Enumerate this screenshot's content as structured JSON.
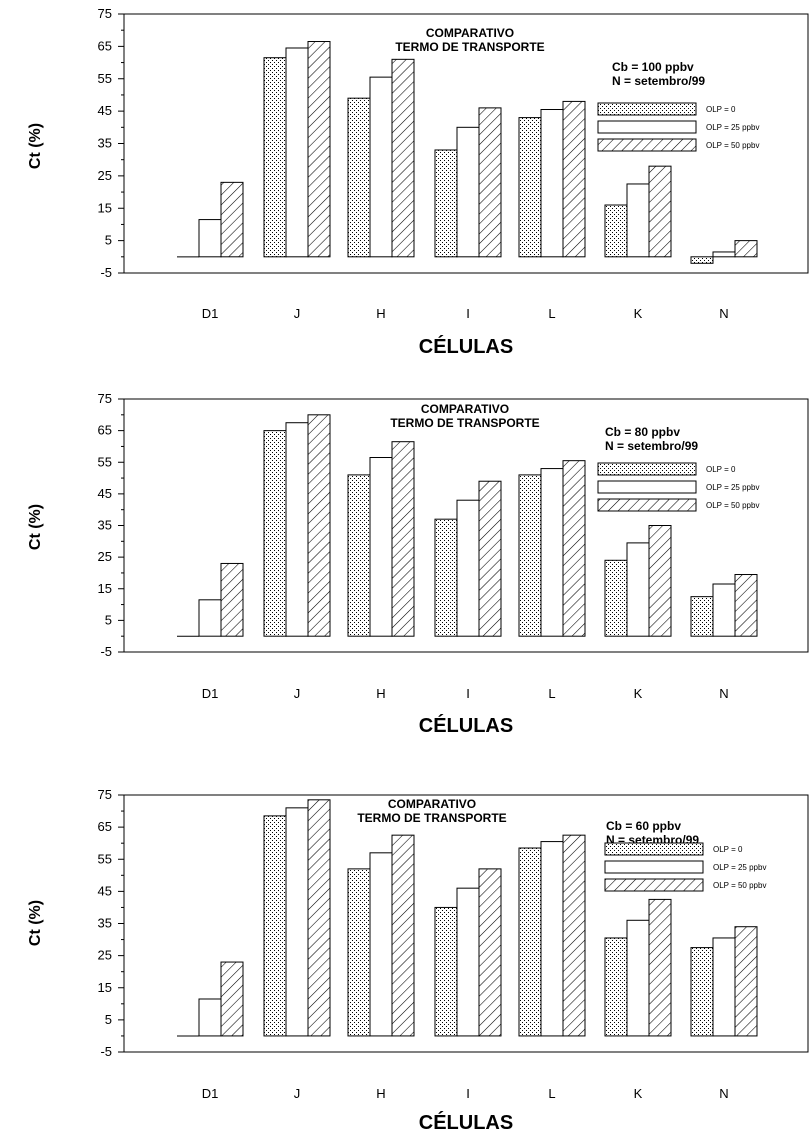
{
  "chart_data": [
    {
      "type": "bar",
      "title": [
        "COMPARATIVO",
        "TERMO DE TRANSPORTE"
      ],
      "annotation": [
        "Cb = 100 ppbv",
        "N = setembro/99"
      ],
      "xlabel": "CÉLULAS",
      "ylabel": "Ct (%)",
      "ylim": [
        -5,
        75
      ],
      "yticks": [
        75,
        65,
        55,
        45,
        35,
        25,
        15,
        5,
        -5
      ],
      "categories": [
        "D1",
        "J",
        "H",
        "I",
        "L",
        "K",
        "N"
      ],
      "series": [
        {
          "name": "OLP = 0",
          "pattern": "dots",
          "values": [
            0,
            61.5,
            49,
            33,
            43,
            16,
            -2
          ]
        },
        {
          "name": "OLP = 25 ppbv",
          "pattern": "plain",
          "values": [
            11.5,
            64.5,
            55.5,
            40,
            45.5,
            22.5,
            1.5
          ]
        },
        {
          "name": "OLP = 50 ppbv",
          "pattern": "hatch",
          "values": [
            23,
            66.5,
            61,
            46,
            48,
            28,
            5
          ]
        }
      ],
      "legend_position": "top-right",
      "grid": false
    },
    {
      "type": "bar",
      "title": [
        "COMPARATIVO",
        "TERMO DE TRANSPORTE"
      ],
      "annotation": [
        "Cb = 80 ppbv",
        "N = setembro/99"
      ],
      "xlabel": "CÉLULAS",
      "ylabel": "Ct (%)",
      "ylim": [
        -5,
        75
      ],
      "yticks": [
        75,
        65,
        55,
        45,
        35,
        25,
        15,
        5,
        -5
      ],
      "categories": [
        "D1",
        "J",
        "H",
        "I",
        "L",
        "K",
        "N"
      ],
      "series": [
        {
          "name": "OLP = 0",
          "pattern": "dots",
          "values": [
            0,
            65,
            51,
            37,
            51,
            24,
            12.5
          ]
        },
        {
          "name": "OLP = 25 ppbv",
          "pattern": "plain",
          "values": [
            11.5,
            67.5,
            56.5,
            43,
            53,
            29.5,
            16.5
          ]
        },
        {
          "name": "OLP = 50 ppbv",
          "pattern": "hatch",
          "values": [
            23,
            70,
            61.5,
            49,
            55.5,
            35,
            19.5
          ]
        }
      ],
      "legend_position": "top-right",
      "grid": false
    },
    {
      "type": "bar",
      "title": [
        "COMPARATIVO",
        "TERMO DE TRANSPORTE"
      ],
      "annotation": [
        "Cb = 60 ppbv",
        "N = setembro/99"
      ],
      "xlabel": "CÉLULAS",
      "ylabel": "Ct (%)",
      "ylim": [
        -5,
        75
      ],
      "yticks": [
        75,
        65,
        55,
        45,
        35,
        25,
        15,
        5,
        -5
      ],
      "categories": [
        "D1",
        "J",
        "H",
        "I",
        "L",
        "K",
        "N"
      ],
      "series": [
        {
          "name": "OLP = 0",
          "pattern": "dots",
          "values": [
            0,
            68.5,
            52,
            40,
            58.5,
            30.5,
            27.5
          ]
        },
        {
          "name": "OLP = 25 ppbv",
          "pattern": "plain",
          "values": [
            11.5,
            71,
            57,
            46,
            60.5,
            36,
            30.5
          ]
        },
        {
          "name": "OLP = 50 ppbv",
          "pattern": "hatch",
          "values": [
            23,
            73.5,
            62.5,
            52,
            62.5,
            42.5,
            34
          ]
        }
      ],
      "legend_position": "top-right",
      "grid": false
    }
  ]
}
